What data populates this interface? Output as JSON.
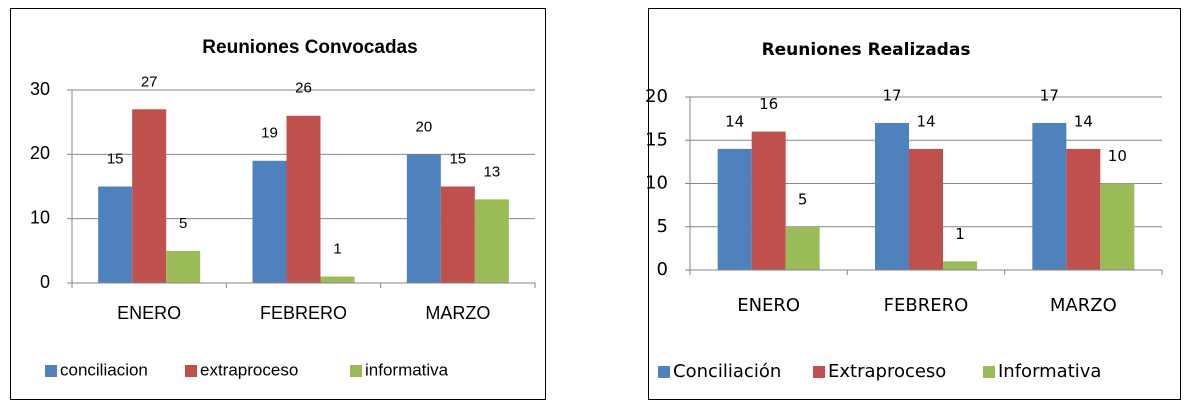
{
  "chart_data": [
    {
      "type": "bar",
      "title": "Reuniones Convocadas",
      "categories": [
        "ENERO",
        "FEBRERO",
        "MARZO"
      ],
      "series": [
        {
          "name": "conciliacion",
          "color": "#4f81bd",
          "values": [
            15,
            19,
            20
          ]
        },
        {
          "name": "extraproceso",
          "color": "#c0504d",
          "values": [
            27,
            26,
            15
          ]
        },
        {
          "name": "informativa",
          "color": "#9bbb59",
          "values": [
            5,
            1,
            13
          ]
        }
      ],
      "ylim": [
        0,
        30
      ],
      "yticks": [
        0,
        10,
        20,
        30
      ],
      "grid": true,
      "legend": "bottom"
    },
    {
      "type": "bar",
      "title": "Reuniones Realizadas",
      "categories": [
        "ENERO",
        "FEBRERO",
        "MARZO"
      ],
      "series": [
        {
          "name": "Conciliación",
          "color": "#4f81bd",
          "values": [
            14,
            17,
            17
          ]
        },
        {
          "name": "Extraproceso",
          "color": "#c0504d",
          "values": [
            16,
            14,
            14
          ]
        },
        {
          "name": "Informativa",
          "color": "#9bbb59",
          "values": [
            5,
            1,
            10
          ]
        }
      ],
      "ylim": [
        0,
        20
      ],
      "yticks": [
        0,
        5,
        10,
        15,
        20
      ],
      "grid": true,
      "legend": "bottom"
    }
  ]
}
